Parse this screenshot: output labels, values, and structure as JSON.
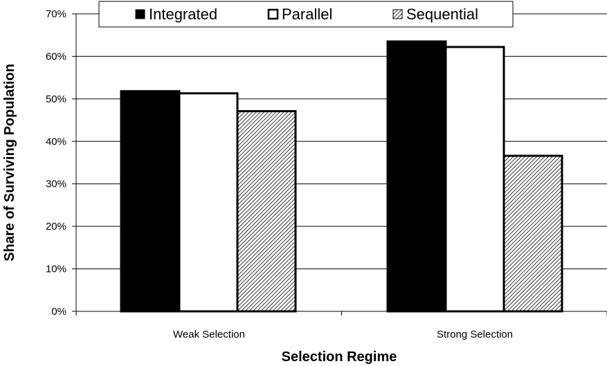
{
  "chart_data": {
    "type": "bar",
    "title": "",
    "xlabel": "Selection Regime",
    "ylabel": "Share of Surviving Population",
    "categories": [
      "Weak Selection",
      "Strong Selection"
    ],
    "series": [
      {
        "name": "Integrated",
        "values": [
          0.518,
          0.635
        ],
        "fill": "#000000",
        "pattern": "solid"
      },
      {
        "name": "Parallel",
        "values": [
          0.513,
          0.622
        ],
        "fill": "#ffffff",
        "pattern": "hollow"
      },
      {
        "name": "Sequential",
        "values": [
          0.471,
          0.366
        ],
        "fill": "#ffffff",
        "pattern": "diagonal-hatch"
      }
    ],
    "ylim": [
      0,
      0.7
    ],
    "yticks": [
      0,
      0.1,
      0.2,
      0.3,
      0.4,
      0.5,
      0.6,
      0.7
    ],
    "ytick_labels": [
      "0%",
      "10%",
      "20%",
      "30%",
      "40%",
      "50%",
      "60%",
      "70%"
    ],
    "grid": true,
    "legend_position": "top"
  }
}
